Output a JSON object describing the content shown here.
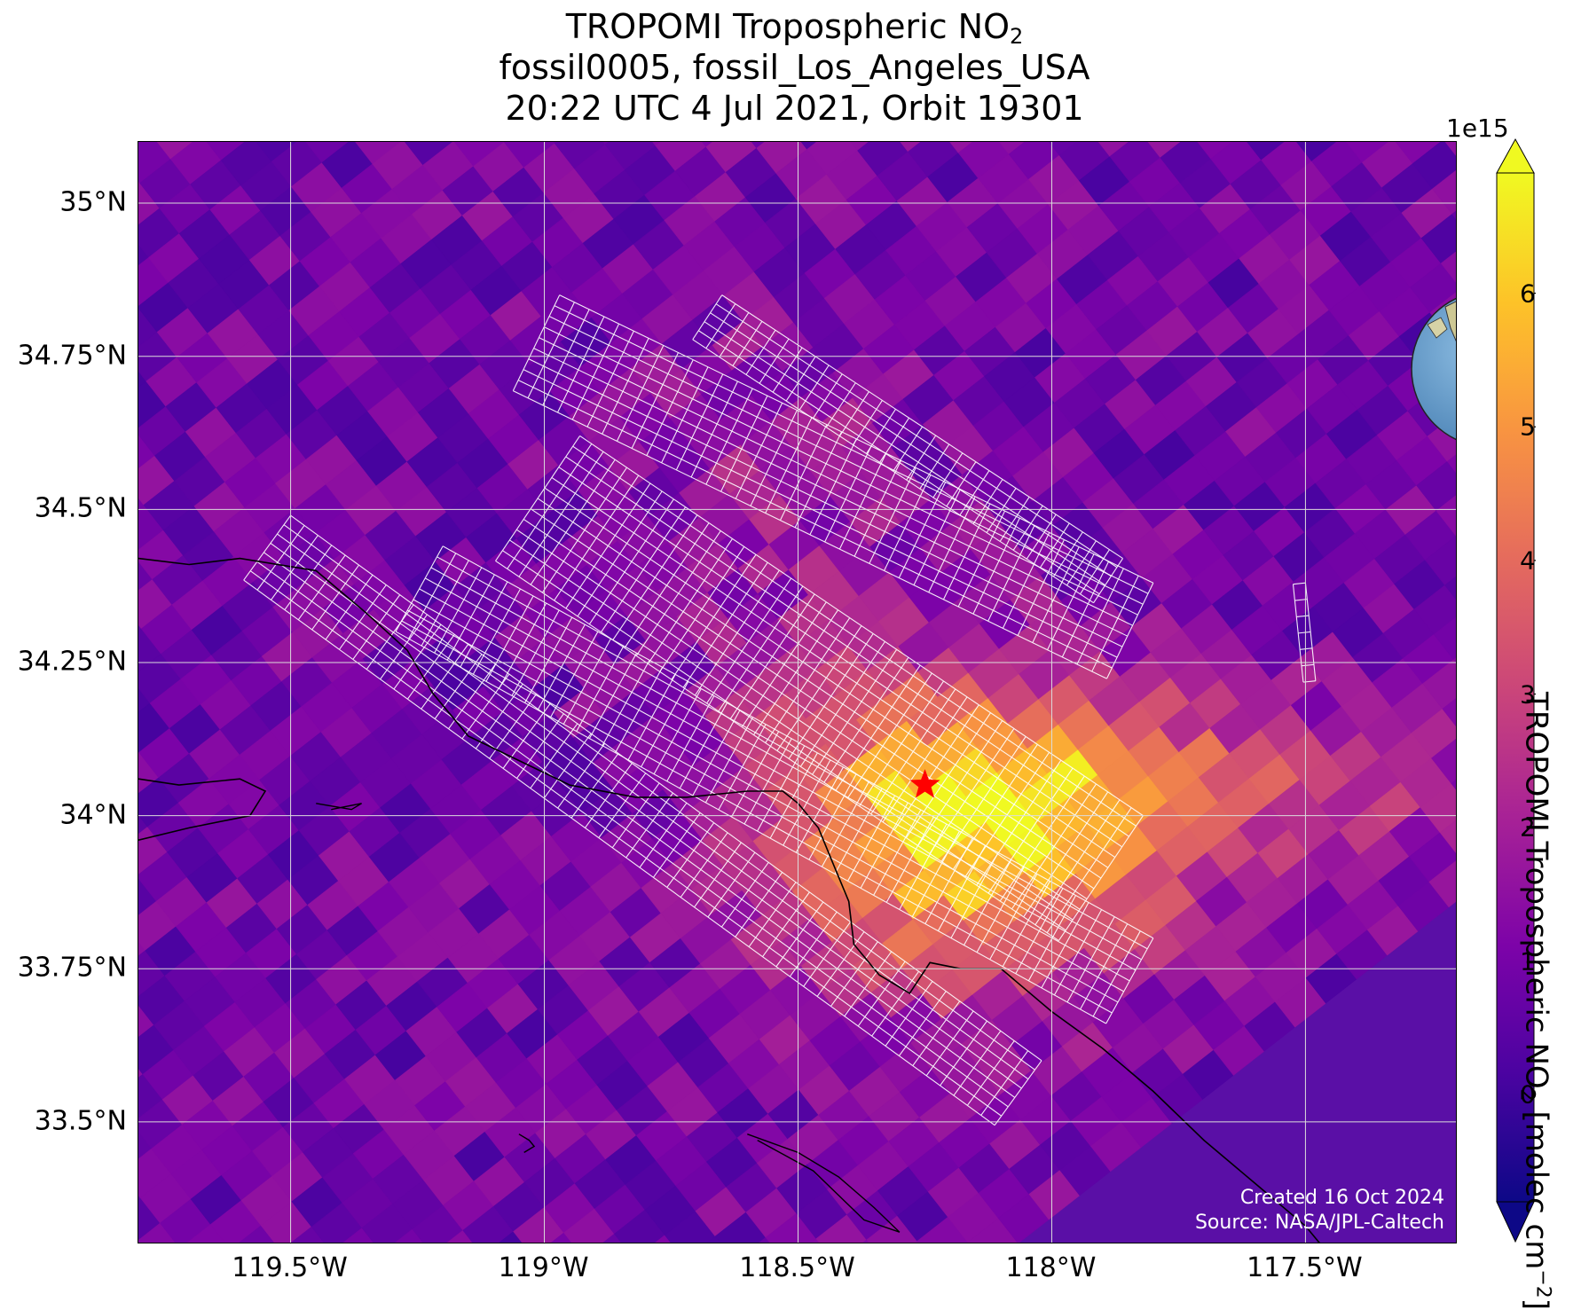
{
  "title": {
    "line1_prefix": "TROPOMI Tropospheric NO",
    "line1_sub": "2",
    "line2": "fossil0005, fossil_Los_Angeles_USA",
    "line3": "20:22 UTC 4 Jul 2021, Orbit 19301"
  },
  "map": {
    "lon_range": [
      -119.8,
      -117.2
    ],
    "lat_range": [
      33.3,
      35.1
    ],
    "lat_ticks": [
      {
        "value": 35.0,
        "label": "35°N"
      },
      {
        "value": 34.75,
        "label": "34.75°N"
      },
      {
        "value": 34.5,
        "label": "34.5°N"
      },
      {
        "value": 34.25,
        "label": "34.25°N"
      },
      {
        "value": 34.0,
        "label": "34°N"
      },
      {
        "value": 33.75,
        "label": "33.75°N"
      },
      {
        "value": 33.5,
        "label": "33.5°N"
      }
    ],
    "lon_ticks": [
      {
        "value": -119.5,
        "label": "119.5°W"
      },
      {
        "value": -119.0,
        "label": "119°W"
      },
      {
        "value": -118.5,
        "label": "118.5°W"
      },
      {
        "value": -118.0,
        "label": "118°W"
      },
      {
        "value": -117.5,
        "label": "117.5°W"
      }
    ],
    "target": {
      "lon": -118.25,
      "lat": 34.05,
      "color": "#ff0000"
    },
    "credit_line1": "Created 16 Oct 2024",
    "credit_line2": "Source: NASA/JPL-Caltech",
    "colors": {
      "grid": "#dcdcdc",
      "coast": "#000000",
      "oco_grid": "#ffffff"
    }
  },
  "colorbar": {
    "colormap": "plasma",
    "range": [
      -0.8,
      6.9
    ],
    "exponent_label": "1e15",
    "ticks": [
      {
        "value": 0,
        "label": "0"
      },
      {
        "value": 1,
        "label": "1"
      },
      {
        "value": 2,
        "label": "2"
      },
      {
        "value": 3,
        "label": "3"
      },
      {
        "value": 4,
        "label": "4"
      },
      {
        "value": 5,
        "label": "5"
      },
      {
        "value": 6,
        "label": "6"
      }
    ],
    "label_prefix": "TROPOMI Tropospheric NO",
    "label_sub": "2",
    "label_mid": " [molec cm",
    "label_sup": "−2",
    "label_suffix": "]"
  },
  "inset_globe": {
    "ocean": "#6fa3cf",
    "land": "#c9c98f",
    "marker": "#ff0000"
  }
}
